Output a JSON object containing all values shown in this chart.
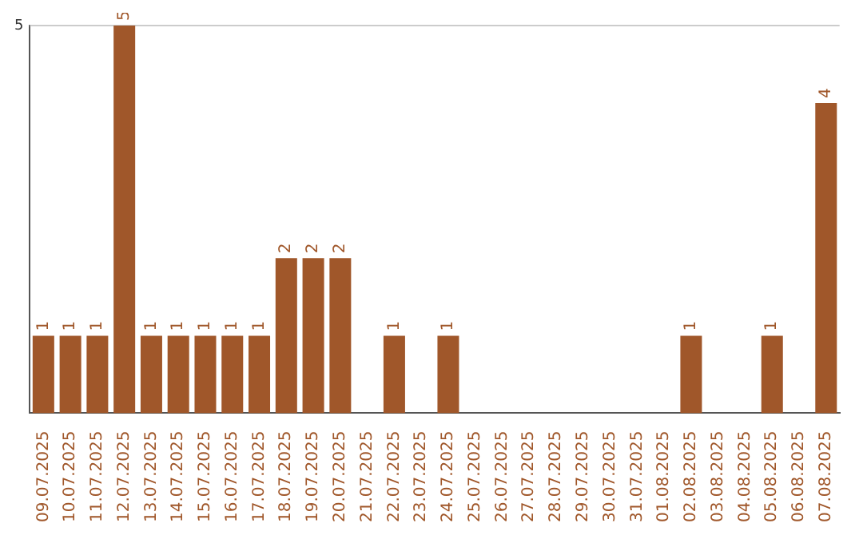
{
  "chart_data": {
    "type": "bar",
    "categories": [
      "09.07.2025",
      "10.07.2025",
      "11.07.2025",
      "12.07.2025",
      "13.07.2025",
      "14.07.2025",
      "15.07.2025",
      "16.07.2025",
      "17.07.2025",
      "18.07.2025",
      "19.07.2025",
      "20.07.2025",
      "21.07.2025",
      "22.07.2025",
      "23.07.2025",
      "24.07.2025",
      "25.07.2025",
      "26.07.2025",
      "27.07.2025",
      "28.07.2025",
      "29.07.2025",
      "30.07.2025",
      "31.07.2025",
      "01.08.2025",
      "02.08.2025",
      "03.08.2025",
      "04.08.2025",
      "05.08.2025",
      "06.08.2025",
      "07.08.2025"
    ],
    "values": [
      1,
      1,
      1,
      5,
      1,
      1,
      1,
      1,
      1,
      2,
      2,
      2,
      0,
      1,
      0,
      1,
      0,
      0,
      0,
      0,
      0,
      0,
      0,
      0,
      1,
      0,
      0,
      1,
      0,
      4
    ],
    "value_labels": [
      "1",
      "1",
      "1",
      "5",
      "1",
      "1",
      "1",
      "1",
      "1",
      "2",
      "2",
      "2",
      null,
      "1",
      null,
      "1",
      null,
      null,
      null,
      null,
      null,
      null,
      null,
      null,
      "1",
      null,
      null,
      "1",
      null,
      "4"
    ],
    "color": "#a0572a",
    "ylim": [
      0,
      5
    ],
    "yticks": [
      5
    ],
    "legend": false,
    "ref_lines": [
      {
        "axis": "y",
        "value": 5,
        "color": "#cccccc"
      }
    ]
  }
}
